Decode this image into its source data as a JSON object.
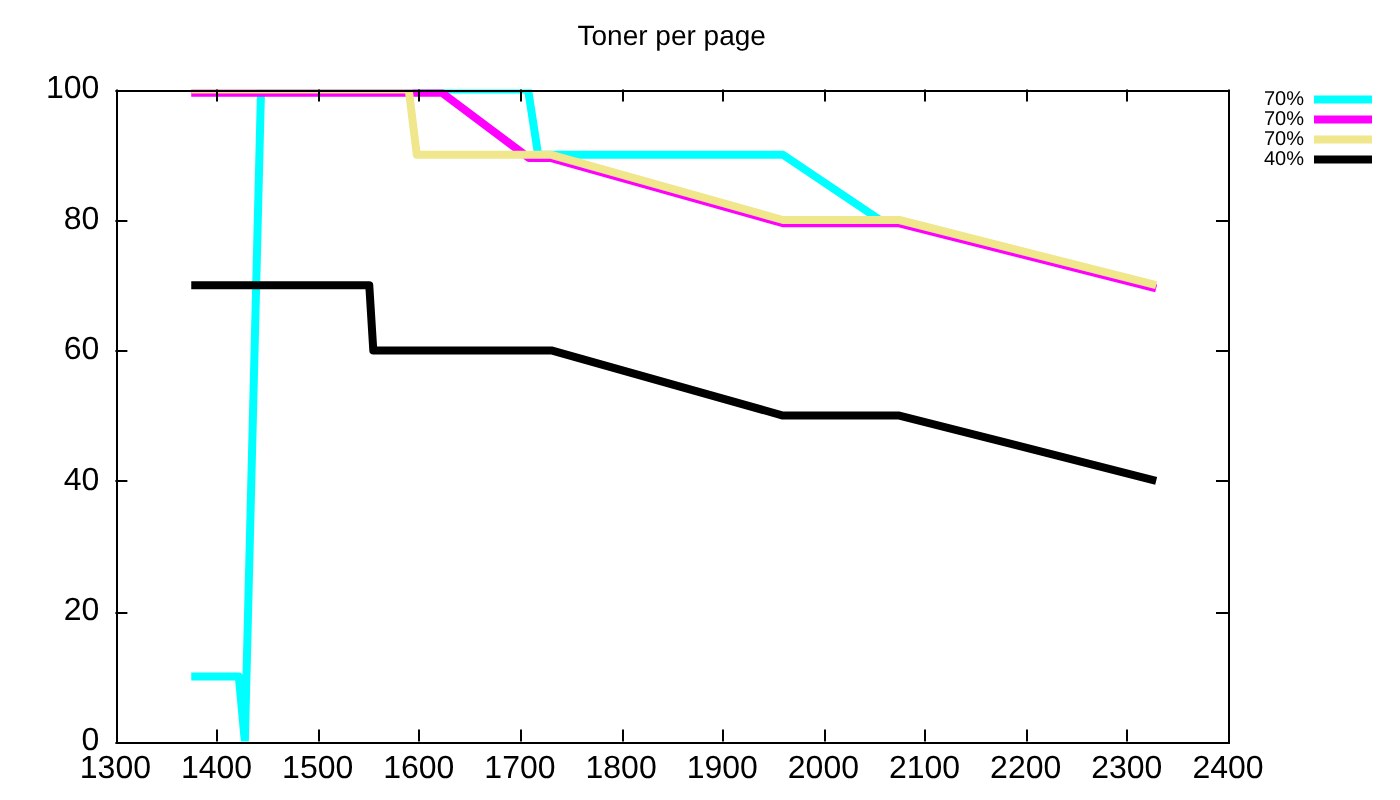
{
  "chart_data": {
    "type": "line",
    "title": "Toner per page",
    "series": [
      {
        "name": "70%",
        "color": "#00ffff",
        "x": [
          1375,
          1422,
          1428,
          1444,
          1708,
          1718,
          1960,
          2056
        ],
        "values": [
          10,
          10,
          0,
          100,
          100,
          90,
          90,
          80
        ]
      },
      {
        "name": "70%",
        "color": "#ff00ff",
        "x": [
          1375,
          1623,
          1709,
          1731,
          1960,
          2075,
          2329
        ],
        "values": [
          99.5,
          99.5,
          89.5,
          89.5,
          79.5,
          79.5,
          69.5
        ]
      },
      {
        "name": "70%",
        "color": "#f0e68c",
        "x": [
          1375,
          1590,
          1598,
          1731,
          1960,
          2075,
          2329
        ],
        "values": [
          100,
          100,
          90,
          90,
          80,
          80,
          70
        ]
      },
      {
        "name": "40%",
        "color": "#000000",
        "x": [
          1375,
          1551,
          1555,
          1731,
          1960,
          2075,
          2329
        ],
        "values": [
          70,
          70,
          60,
          60,
          50,
          50,
          40
        ]
      }
    ],
    "xlim": [
      1300,
      2400
    ],
    "xticks": [
      1300,
      1400,
      1500,
      1600,
      1700,
      1800,
      1900,
      2000,
      2100,
      2200,
      2300,
      2400
    ],
    "ylim": [
      0,
      100
    ],
    "yticks": [
      0,
      20,
      40,
      60,
      80,
      100
    ],
    "legend": "top right",
    "marker": "none",
    "line_style": "solid"
  }
}
